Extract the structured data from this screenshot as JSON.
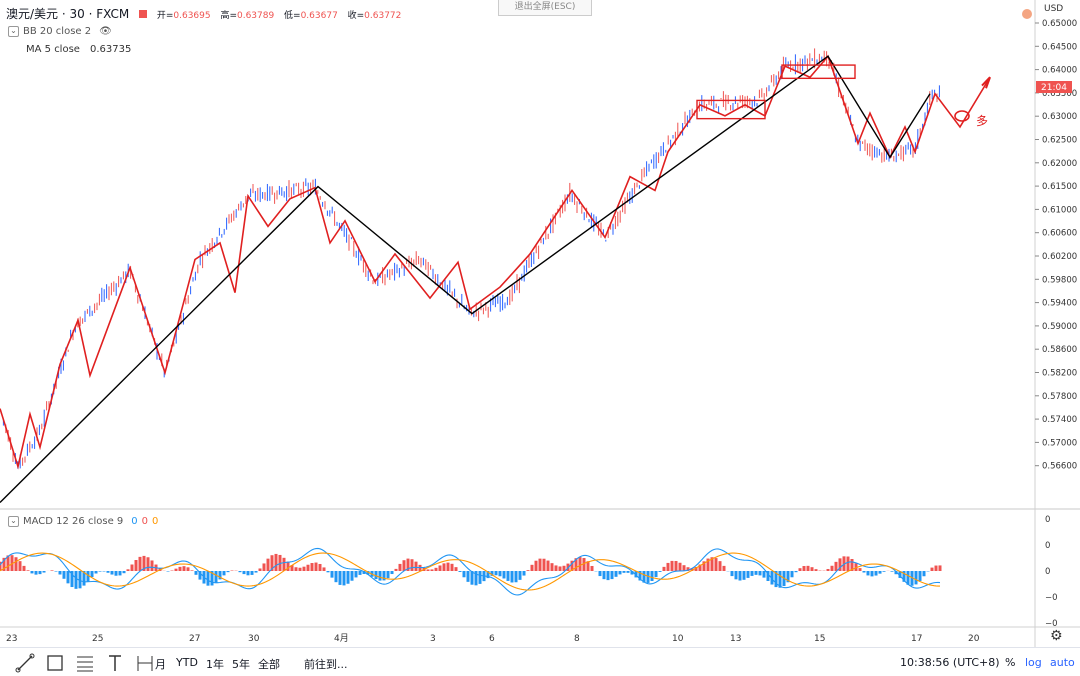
{
  "header": {
    "symbol": "澳元/美元 · 30 · FXCM",
    "ohlc": [
      {
        "label": "开=",
        "value": "0.63695"
      },
      {
        "label": "高=",
        "value": "0.63789"
      },
      {
        "label": "低=",
        "value": "0.63677"
      },
      {
        "label": "收=",
        "value": "0.63772"
      }
    ],
    "exit_fullscreen": "退出全屏(ESC)",
    "currency": "USD"
  },
  "indicators": {
    "bb": "BB 20 close 2",
    "ma_label": "MA 5 close",
    "ma_value": "0.63735",
    "macd_label": "MACD 12 26 close 9",
    "macd_values": [
      "0",
      "0",
      "0"
    ]
  },
  "price_axis": {
    "ticks": [
      "0.65000",
      "0.64500",
      "0.64000",
      "0.63500",
      "0.63000",
      "0.62500",
      "0.62000",
      "0.61500",
      "0.61000",
      "0.60600",
      "0.60200",
      "0.59800",
      "0.59400",
      "0.59000",
      "0.58600",
      "0.58200",
      "0.57800",
      "0.57400",
      "0.57000",
      "0.56600"
    ],
    "current_label": "21:04",
    "current_color": "#ef5350"
  },
  "macd_axis": {
    "ticks": [
      "0",
      "0",
      "0",
      "−0",
      "−0"
    ]
  },
  "time_axis": {
    "ticks": [
      "23",
      "25",
      "27",
      "30",
      "4月",
      "3",
      "6",
      "8",
      "10",
      "13",
      "15",
      "17",
      "20"
    ]
  },
  "annotation": {
    "text": "多"
  },
  "colors": {
    "up": "#2962ff",
    "down": "#ef5350",
    "trend": "#000000",
    "zigzag": "#e02020",
    "macd_line": "#2196f3",
    "signal_line": "#ff9800"
  },
  "bottom_bar": {
    "periods": [
      "月",
      "YTD",
      "1年",
      "5年",
      "全部"
    ],
    "goto": "前往到...",
    "clock": "10:38:56 (UTC+8)",
    "percent": "%",
    "log": "log",
    "auto": "auto"
  },
  "chart_data": {
    "type": "line",
    "title": "",
    "trend_points": [
      {
        "x": "23",
        "y": 0.564
      },
      {
        "x": "30",
        "y": 0.621
      },
      {
        "x": "5",
        "y": 0.5982
      },
      {
        "x": "15",
        "y": 0.6448
      },
      {
        "x": "16",
        "y": 0.6265
      },
      {
        "x": "17",
        "y": 0.638
      }
    ],
    "ylim": [
      0.563,
      0.651
    ]
  }
}
